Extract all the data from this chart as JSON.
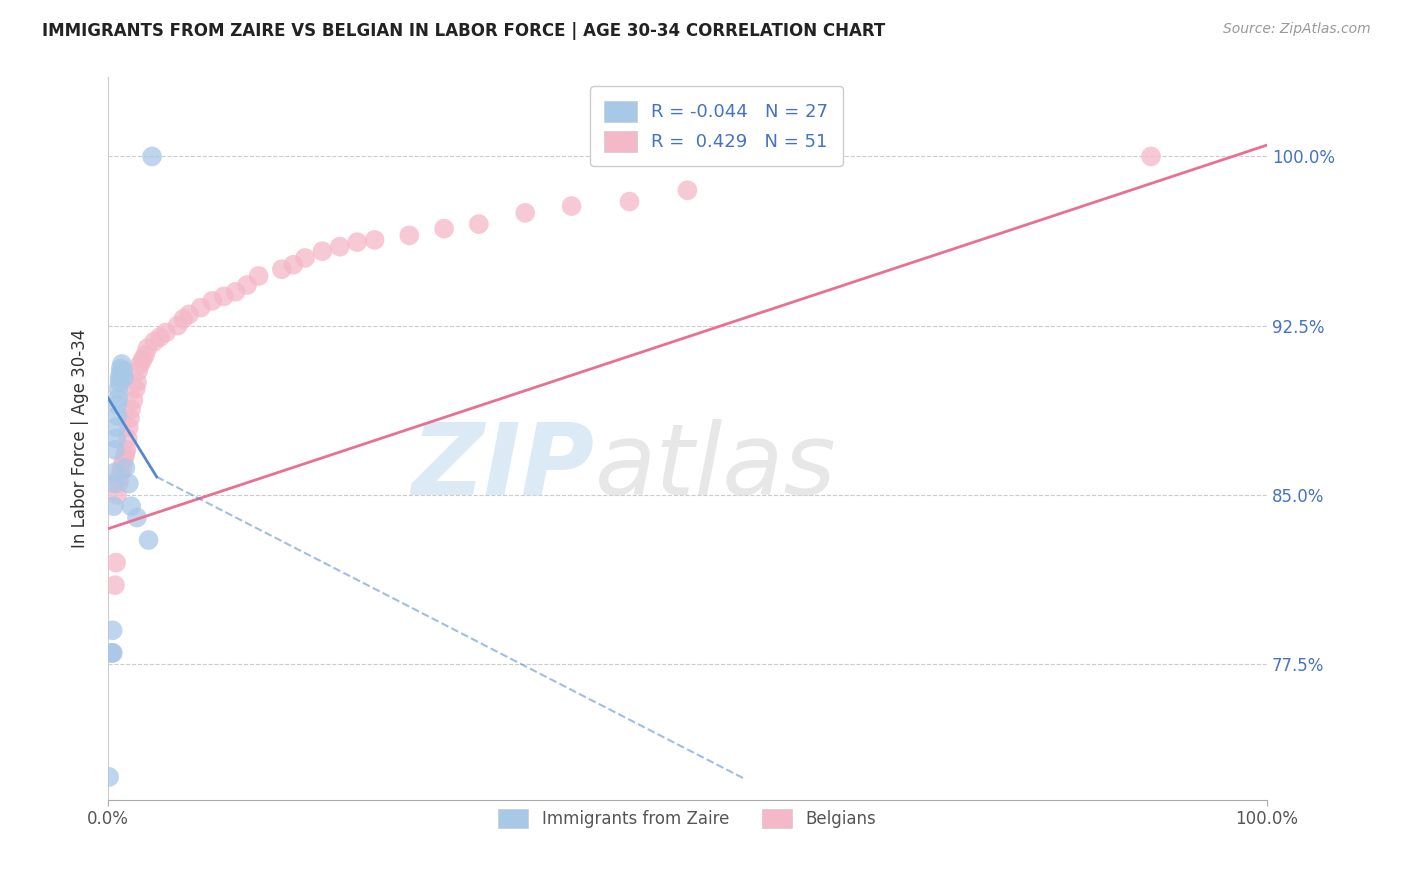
{
  "title": "IMMIGRANTS FROM ZAIRE VS BELGIAN IN LABOR FORCE | AGE 30-34 CORRELATION CHART",
  "source": "Source: ZipAtlas.com",
  "ylabel": "In Labor Force | Age 30-34",
  "zaire_R": -0.044,
  "zaire_N": 27,
  "belgian_R": 0.429,
  "belgian_N": 51,
  "xlim": [
    0.0,
    1.0
  ],
  "ylim": [
    0.715,
    1.035
  ],
  "yticks": [
    0.775,
    0.85,
    0.925,
    1.0
  ],
  "ytick_labels": [
    "77.5%",
    "85.0%",
    "92.5%",
    "100.0%"
  ],
  "xtick_labels": [
    "0.0%",
    "100.0%"
  ],
  "xticks": [
    0.0,
    1.0
  ],
  "zaire_color": "#a8c8e8",
  "belgian_color": "#f4b8c8",
  "zaire_line_color": "#5588cc",
  "belgian_line_color": "#e87090",
  "zaire_x": [
    0.001,
    0.003,
    0.004,
    0.004,
    0.005,
    0.005,
    0.006,
    0.006,
    0.007,
    0.007,
    0.008,
    0.008,
    0.009,
    0.009,
    0.01,
    0.01,
    0.011,
    0.011,
    0.012,
    0.013,
    0.014,
    0.015,
    0.018,
    0.02,
    0.025,
    0.035,
    0.038
  ],
  "zaire_y": [
    0.725,
    0.78,
    0.78,
    0.79,
    0.845,
    0.855,
    0.86,
    0.87,
    0.875,
    0.88,
    0.885,
    0.89,
    0.893,
    0.897,
    0.9,
    0.902,
    0.904,
    0.906,
    0.908,
    0.905,
    0.902,
    0.862,
    0.855,
    0.845,
    0.84,
    0.83,
    1.0
  ],
  "belgian_x": [
    0.004,
    0.006,
    0.007,
    0.008,
    0.009,
    0.01,
    0.011,
    0.012,
    0.013,
    0.014,
    0.015,
    0.016,
    0.017,
    0.018,
    0.019,
    0.02,
    0.022,
    0.024,
    0.025,
    0.026,
    0.028,
    0.03,
    0.032,
    0.034,
    0.04,
    0.045,
    0.05,
    0.06,
    0.065,
    0.07,
    0.08,
    0.09,
    0.1,
    0.11,
    0.12,
    0.13,
    0.15,
    0.16,
    0.17,
    0.185,
    0.2,
    0.215,
    0.23,
    0.26,
    0.29,
    0.32,
    0.36,
    0.4,
    0.45,
    0.5,
    0.9
  ],
  "belgian_y": [
    0.78,
    0.81,
    0.82,
    0.85,
    0.855,
    0.857,
    0.86,
    0.862,
    0.864,
    0.866,
    0.868,
    0.87,
    0.875,
    0.88,
    0.884,
    0.888,
    0.892,
    0.897,
    0.9,
    0.905,
    0.908,
    0.91,
    0.912,
    0.915,
    0.918,
    0.92,
    0.922,
    0.925,
    0.928,
    0.93,
    0.933,
    0.936,
    0.938,
    0.94,
    0.943,
    0.947,
    0.95,
    0.952,
    0.955,
    0.958,
    0.96,
    0.962,
    0.963,
    0.965,
    0.968,
    0.97,
    0.975,
    0.978,
    0.98,
    0.985,
    1.0
  ]
}
